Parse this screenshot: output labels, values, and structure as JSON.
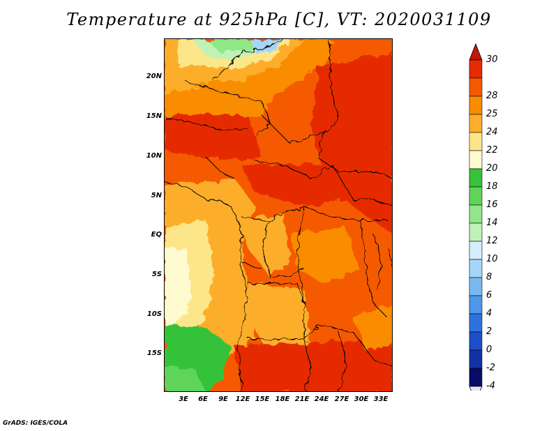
{
  "title": "Temperature at 925hPa [C], VT: 2020031109",
  "footer": "GrADS: IGES/COLA",
  "map": {
    "lat_labels": [
      "20N",
      "15N",
      "10N",
      "5N",
      "EQ",
      "5S",
      "10S",
      "15S"
    ],
    "lon_labels": [
      "3E",
      "6E",
      "9E",
      "12E",
      "15E",
      "18E",
      "21E",
      "24E",
      "27E",
      "30E",
      "33E"
    ],
    "lon_range": [
      0,
      35
    ],
    "lat_range": [
      -19.5,
      24.5
    ]
  },
  "colorbar": {
    "levels": [
      "30",
      "28",
      "25",
      "24",
      "22",
      "20",
      "18",
      "16",
      "14",
      "12",
      "10",
      "8",
      "6",
      "4",
      "2",
      "0",
      "-2",
      "-4"
    ],
    "colors": [
      "#e62b00",
      "#f55a00",
      "#fa8c00",
      "#fcae2c",
      "#fde68a",
      "#fffbd0",
      "#36c23a",
      "#5fd45a",
      "#90e788",
      "#c0f2b8",
      "#d4eefc",
      "#a6d6f7",
      "#78b9f1",
      "#4f97e8",
      "#2f72dd",
      "#1c4fc9",
      "#1332a5",
      "#0a0a6b"
    ],
    "top_triangle": "#c0170e",
    "bottom_triangle": "#e6e4f6"
  }
}
